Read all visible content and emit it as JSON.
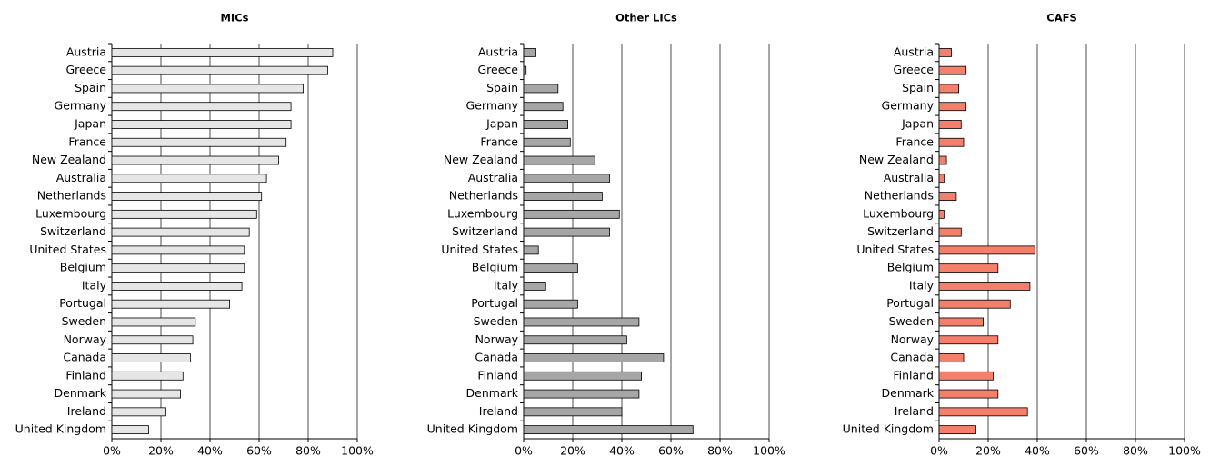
{
  "chart_data": [
    {
      "type": "bar",
      "orientation": "horizontal",
      "title": "MICs",
      "color": "#e6e6e6",
      "categories": [
        "Austria",
        "Greece",
        "Spain",
        "Germany",
        "Japan",
        "France",
        "New Zealand",
        "Australia",
        "Netherlands",
        "Luxembourg",
        "Switzerland",
        "United States",
        "Belgium",
        "Italy",
        "Portugal",
        "Sweden",
        "Norway",
        "Canada",
        "Finland",
        "Denmark",
        "Ireland",
        "United Kingdom"
      ],
      "values": [
        90,
        88,
        78,
        73,
        73,
        71,
        68,
        63,
        61,
        59,
        56,
        54,
        54,
        53,
        48,
        34,
        33,
        32,
        29,
        28,
        22,
        15
      ],
      "xlim": [
        0,
        100
      ],
      "xticks": [
        {
          "value": 0,
          "label": "0%"
        },
        {
          "value": 20,
          "label": "20%"
        },
        {
          "value": 40,
          "label": "40%"
        },
        {
          "value": 60,
          "label": "60%"
        },
        {
          "value": 80,
          "label": "80%"
        },
        {
          "value": 100,
          "label": "100%"
        }
      ],
      "grid": true
    },
    {
      "type": "bar",
      "orientation": "horizontal",
      "title": "Other LICs",
      "color": "#a6a6a6",
      "categories": [
        "Austria",
        "Greece",
        "Spain",
        "Germany",
        "Japan",
        "France",
        "New Zealand",
        "Australia",
        "Netherlands",
        "Luxembourg",
        "Switzerland",
        "United States",
        "Belgium",
        "Italy",
        "Portugal",
        "Sweden",
        "Norway",
        "Canada",
        "Finland",
        "Denmark",
        "Ireland",
        "United Kingdom"
      ],
      "values": [
        5,
        1,
        14,
        16,
        18,
        19,
        29,
        35,
        32,
        39,
        35,
        6,
        22,
        9,
        22,
        47,
        42,
        57,
        48,
        47,
        40,
        69
      ],
      "xlim": [
        0,
        100
      ],
      "xticks": [
        {
          "value": 0,
          "label": "0%"
        },
        {
          "value": 20,
          "label": "20%"
        },
        {
          "value": 40,
          "label": "40%"
        },
        {
          "value": 60,
          "label": "60%"
        },
        {
          "value": 80,
          "label": "80%"
        },
        {
          "value": 100,
          "label": "100%"
        }
      ],
      "grid": true
    },
    {
      "type": "bar",
      "orientation": "horizontal",
      "title": "CAFS",
      "color": "#f4806c",
      "categories": [
        "Austria",
        "Greece",
        "Spain",
        "Germany",
        "Japan",
        "France",
        "New Zealand",
        "Australia",
        "Netherlands",
        "Luxembourg",
        "Switzerland",
        "United States",
        "Belgium",
        "Italy",
        "Portugal",
        "Sweden",
        "Norway",
        "Canada",
        "Finland",
        "Denmark",
        "Ireland",
        "United Kingdom"
      ],
      "values": [
        5,
        11,
        8,
        11,
        9,
        10,
        3,
        2,
        7,
        2,
        9,
        39,
        24,
        37,
        29,
        18,
        24,
        10,
        22,
        24,
        36,
        15
      ],
      "xlim": [
        0,
        100
      ],
      "xticks": [
        {
          "value": 0,
          "label": "0%"
        },
        {
          "value": 20,
          "label": "20%"
        },
        {
          "value": 40,
          "label": "40%"
        },
        {
          "value": 60,
          "label": "60%"
        },
        {
          "value": 80,
          "label": "80%"
        },
        {
          "value": 100,
          "label": "100%"
        }
      ],
      "grid": true
    }
  ]
}
